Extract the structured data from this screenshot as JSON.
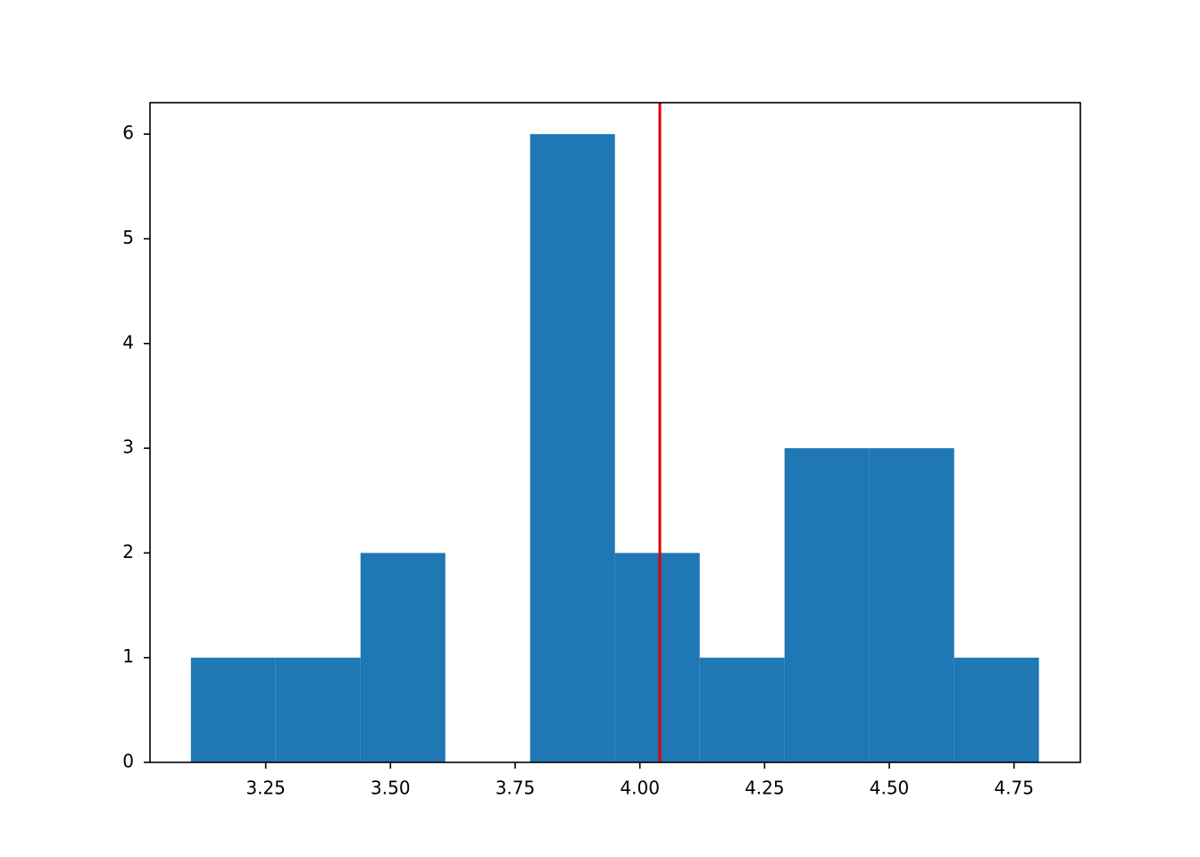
{
  "chart_data": {
    "type": "histogram",
    "bins": [
      3.1,
      3.27,
      3.44,
      3.61,
      3.78,
      3.95,
      4.12,
      4.29,
      4.46,
      4.63,
      4.8
    ],
    "values": [
      1,
      1,
      2,
      0,
      6,
      2,
      1,
      3,
      3,
      1
    ],
    "color": "#1f77b4",
    "xlim": [
      3.018,
      4.883
    ],
    "xticks": [
      3.25,
      {
        "value": 3.5,
        "label": "3.50"
      },
      3.75,
      {
        "value": 4.0,
        "label": "4.00"
      },
      4.25,
      {
        "value": 4.5,
        "label": "4.50"
      },
      4.75
    ],
    "ylim": [
      0,
      6.3
    ],
    "yticks": [
      0,
      1,
      2,
      3,
      4,
      5,
      6
    ],
    "vline": {
      "value": 4.04,
      "color": "#e00000"
    },
    "grid": false
  }
}
